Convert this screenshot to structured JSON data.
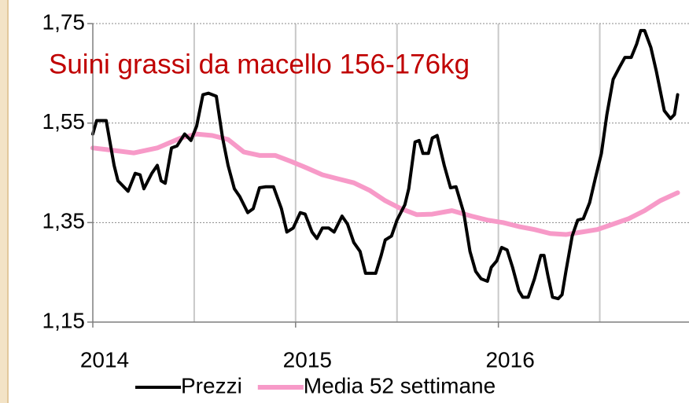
{
  "chart_data": {
    "type": "line",
    "title": "Suini grassi da macello 156-176kg",
    "xlim": [
      2014,
      2016.94
    ],
    "xticks": [
      2014,
      2015,
      2016
    ],
    "xgrid": [
      2014.5,
      2015,
      2015.5,
      2016,
      2016.5
    ],
    "ylim": [
      1.15,
      1.75
    ],
    "yticks": [
      {
        "value": 1.15,
        "label": "1,15"
      },
      {
        "value": 1.35,
        "label": "1,35"
      },
      {
        "value": 1.55,
        "label": "1,55"
      },
      {
        "value": 1.75,
        "label": "1,75"
      }
    ],
    "grid": true,
    "legend": "bottom",
    "series": [
      {
        "name": "Prezzi",
        "color": "#000000",
        "x": [
          2014,
          2014.019,
          2014.066,
          2014.105,
          2014.124,
          2014.174,
          2014.209,
          2014.233,
          2014.252,
          2014.291,
          2014.318,
          2014.337,
          2014.357,
          2014.388,
          2014.415,
          2014.453,
          2014.484,
          2014.512,
          2014.543,
          2014.57,
          2014.609,
          2014.64,
          2014.667,
          2014.698,
          2014.725,
          2014.764,
          2014.791,
          2014.822,
          2014.853,
          2014.891,
          2014.93,
          2014.957,
          2014.988,
          2015.023,
          2015.047,
          2015.081,
          2015.105,
          2015.132,
          2015.163,
          2015.19,
          2015.229,
          2015.256,
          2015.287,
          2015.318,
          2015.345,
          2015.395,
          2015.422,
          2015.442,
          2015.473,
          2015.5,
          2015.539,
          2015.558,
          2015.589,
          2015.609,
          2015.628,
          2015.655,
          2015.674,
          2015.698,
          2015.733,
          2015.764,
          2015.791,
          2015.829,
          2015.86,
          2015.888,
          2015.915,
          2015.946,
          2015.965,
          2015.992,
          2016.016,
          2016.043,
          2016.07,
          2016.101,
          2016.12,
          2016.147,
          2016.178,
          2016.209,
          2016.225,
          2016.244,
          2016.267,
          2016.295,
          2016.314,
          2016.333,
          2016.364,
          2016.391,
          2016.419,
          2016.45,
          2016.477,
          2016.508,
          2016.535,
          2016.566,
          2016.597,
          2016.624,
          2016.655,
          2016.682,
          2016.702,
          2016.721,
          2016.752,
          2016.779,
          2016.818,
          2016.849,
          2016.868,
          2016.884
        ],
        "values": [
          1.528,
          1.555,
          1.555,
          1.465,
          1.434,
          1.413,
          1.449,
          1.446,
          1.418,
          1.449,
          1.465,
          1.434,
          1.429,
          1.5,
          1.504,
          1.528,
          1.515,
          1.544,
          1.607,
          1.61,
          1.604,
          1.52,
          1.465,
          1.418,
          1.402,
          1.37,
          1.378,
          1.42,
          1.422,
          1.422,
          1.378,
          1.331,
          1.339,
          1.37,
          1.367,
          1.331,
          1.318,
          1.339,
          1.339,
          1.331,
          1.363,
          1.347,
          1.31,
          1.292,
          1.248,
          1.248,
          1.284,
          1.315,
          1.323,
          1.355,
          1.386,
          1.418,
          1.512,
          1.515,
          1.489,
          1.489,
          1.52,
          1.525,
          1.465,
          1.42,
          1.422,
          1.37,
          1.292,
          1.252,
          1.237,
          1.232,
          1.26,
          1.273,
          1.3,
          1.295,
          1.26,
          1.213,
          1.2,
          1.2,
          1.237,
          1.284,
          1.284,
          1.244,
          1.2,
          1.197,
          1.205,
          1.252,
          1.323,
          1.355,
          1.358,
          1.39,
          1.437,
          1.489,
          1.567,
          1.638,
          1.662,
          1.682,
          1.682,
          1.709,
          1.736,
          1.736,
          1.702,
          1.654,
          1.575,
          1.559,
          1.567,
          1.607
        ]
      },
      {
        "name": "Media 52 settimane",
        "color": "#f79ac8",
        "x": [
          2014,
          2014.085,
          2014.202,
          2014.318,
          2014.434,
          2014.512,
          2014.589,
          2014.667,
          2014.744,
          2014.822,
          2014.899,
          2014.977,
          2015.054,
          2015.132,
          2015.209,
          2015.287,
          2015.364,
          2015.442,
          2015.519,
          2015.597,
          2015.674,
          2015.771,
          2015.868,
          2015.946,
          2016.023,
          2016.101,
          2016.178,
          2016.256,
          2016.333,
          2016.411,
          2016.488,
          2016.566,
          2016.643,
          2016.721,
          2016.798,
          2016.884
        ],
        "values": [
          1.5,
          1.496,
          1.49,
          1.5,
          1.52,
          1.528,
          1.525,
          1.517,
          1.492,
          1.485,
          1.485,
          1.473,
          1.46,
          1.446,
          1.438,
          1.43,
          1.415,
          1.394,
          1.378,
          1.366,
          1.367,
          1.374,
          1.363,
          1.355,
          1.35,
          1.342,
          1.336,
          1.328,
          1.326,
          1.331,
          1.336,
          1.347,
          1.358,
          1.374,
          1.394,
          1.41
        ]
      }
    ]
  }
}
